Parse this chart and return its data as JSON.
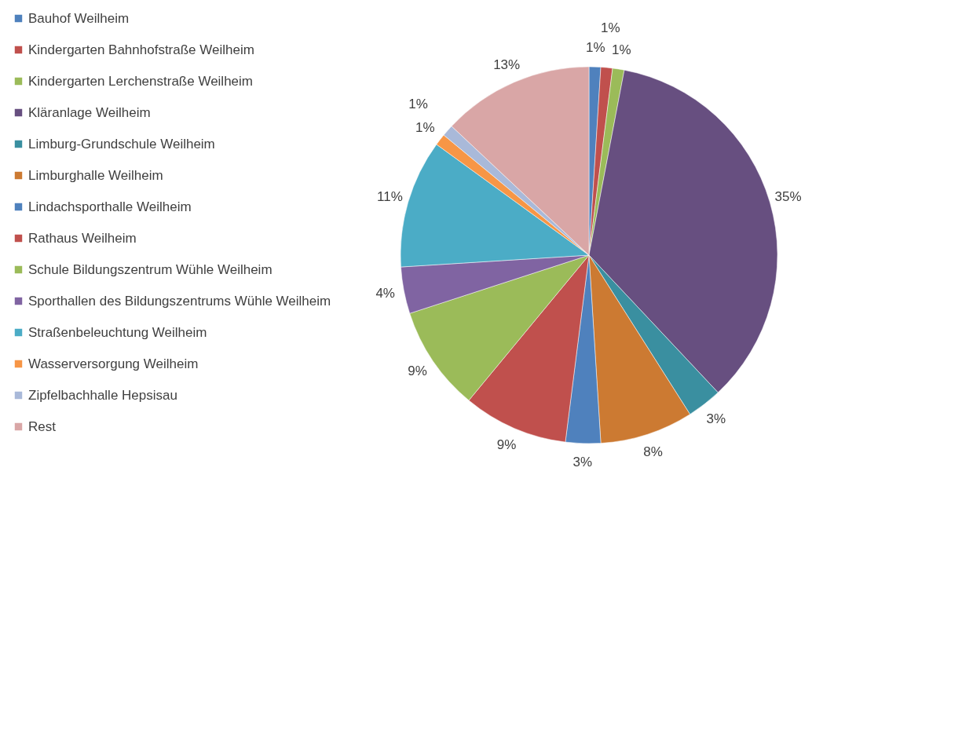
{
  "chart_data": {
    "type": "pie",
    "categories": [
      "Bauhof Weilheim",
      "Kindergarten Bahnhofstraße Weilheim",
      "Kindergarten Lerchenstraße Weilheim",
      "Kläranlage Weilheim",
      "Limburg-Grundschule Weilheim",
      "Limburghalle Weilheim",
      "Lindachsporthalle Weilheim",
      "Rathaus Weilheim",
      "Schule Bildungszentrum Wühle Weilheim",
      "Sporthallen des Bildungszentrums Wühle Weilheim",
      "Straßenbeleuchtung Weilheim",
      "Wasserversorgung Weilheim",
      "Zipfelbachhalle Hepsisau",
      "Rest"
    ],
    "values": [
      1,
      1,
      1,
      35,
      3,
      8,
      3,
      9,
      9,
      4,
      11,
      1,
      1,
      13
    ],
    "value_labels": [
      "1%",
      "1%",
      "1%",
      "35%",
      "3%",
      "8%",
      "3%",
      "9%",
      "9%",
      "4%",
      "11%",
      "1%",
      "1%",
      "13%"
    ],
    "colors": [
      "#4f81bd",
      "#c0504d",
      "#9bbb59",
      "#674f80",
      "#3a8fa0",
      "#cc7a32",
      "#4f81bd",
      "#c0504d",
      "#9bbb59",
      "#8064a2",
      "#4bacc6",
      "#f79646",
      "#a9b9d9",
      "#d9a6a6"
    ],
    "legend": "left"
  }
}
